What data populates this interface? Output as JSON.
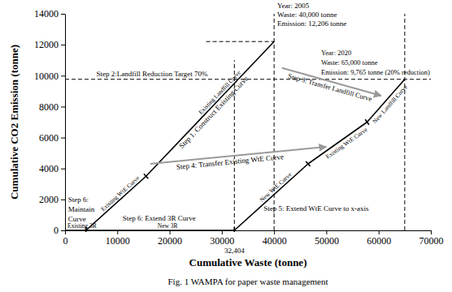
{
  "chart_data": {
    "type": "line",
    "caption": "Fig. 1 WAMPA for paper waste management",
    "x_label": "Cumulative Waste (tonne)",
    "y_label": "Cumulative CO2 Emission (tonne)",
    "xlim": [
      0,
      70000
    ],
    "xticks": [
      0,
      10000,
      20000,
      30000,
      40000,
      50000,
      60000,
      70000
    ],
    "ylim": [
      0,
      14000
    ],
    "yticks": [
      0,
      2000,
      4000,
      6000,
      8000,
      10000,
      12000,
      14000
    ],
    "x_marker": {
      "value": 32404,
      "label": "32,404"
    },
    "series": [
      {
        "name": "Existing 3R",
        "color": "#000000",
        "x": [
          0,
          4000
        ],
        "values": [
          0,
          0
        ]
      },
      {
        "name": "Existing WtE Curve",
        "color": "#000000",
        "x": [
          4000,
          15500
        ],
        "values": [
          0,
          3500
        ]
      },
      {
        "name": "Existing Landfill Curve",
        "color": "#000000",
        "x": [
          15500,
          40000
        ],
        "values": [
          3500,
          12206
        ]
      },
      {
        "name": "New 3R",
        "color": "#000000",
        "x": [
          4000,
          32404
        ],
        "values": [
          0,
          0
        ]
      },
      {
        "name": "New WtE Curve",
        "color": "#000000",
        "x": [
          32404,
          46500
        ],
        "values": [
          0,
          4300
        ]
      },
      {
        "name": "Existing WtE Curve",
        "color": "#000000",
        "x": [
          46500,
          57800
        ],
        "values": [
          4300,
          7000
        ]
      },
      {
        "name": "New Landfill Curve",
        "color": "#000000",
        "x": [
          57800,
          65000
        ],
        "values": [
          7000,
          9765
        ]
      },
      {
        "color": "#000000",
        "line_style": "dashed",
        "x": [
          27000,
          40000
        ],
        "values": [
          12206,
          12206
        ]
      },
      {
        "color": "#000000",
        "line_style": "dashed",
        "x": [
          0,
          70000
        ],
        "values": [
          9765,
          9765
        ]
      },
      {
        "color": "#000000",
        "line_style": "dashed",
        "x": [
          40000,
          40000
        ],
        "values": [
          0,
          14000
        ]
      },
      {
        "color": "#000000",
        "line_style": "dashed",
        "x": [
          65000,
          65000
        ],
        "values": [
          0,
          14000
        ]
      },
      {
        "color": "#000000",
        "line_style": "dashed",
        "x": [
          32404,
          32404
        ],
        "values": [
          0,
          11000
        ]
      },
      {
        "color": "#000000",
        "line_style": "dashed",
        "x": [
          4000,
          4000
        ],
        "values": [
          0,
          400
        ]
      }
    ],
    "annotations": [
      {
        "text": "Year: 2005"
      },
      {
        "text": "Waste: 40,000 tonne"
      },
      {
        "text": "Emission: 12,206 tonne"
      },
      {
        "text": "Year: 2020"
      },
      {
        "text": "Waste: 65,000 tonne"
      },
      {
        "text": "Emission: 9,765 tonne (20% reduction)"
      },
      {
        "text": "Step 1. Construct Existing Curve"
      },
      {
        "text": "Step 2:Landfill Reduction Target 70%"
      },
      {
        "text": "Step 3: Transfer Landfill Curve"
      },
      {
        "text": "Step 4: Transfer Existing WtE Curve"
      },
      {
        "text": "Step 5: Extend WtE Curve to x-axis"
      },
      {
        "text": "Step 6:"
      },
      {
        "text": "Maintain"
      },
      {
        "text": "Curve"
      },
      {
        "text": "Step 6: Extend 3R Curve"
      }
    ]
  }
}
